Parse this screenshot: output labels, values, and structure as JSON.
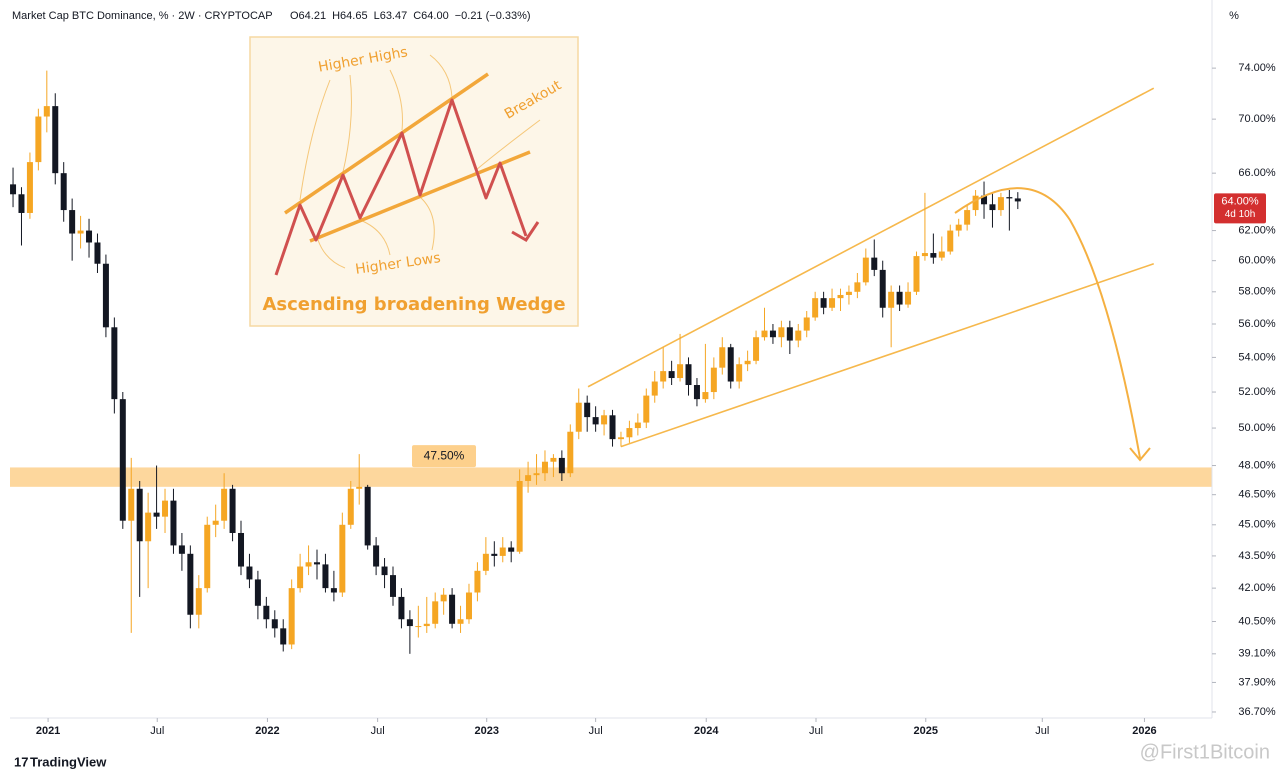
{
  "chart_data": {
    "type": "candlestick",
    "title": "Market Cap BTC Dominance, % · 2W · CRYPTOCAP",
    "header_values": [
      "O64.21",
      "H64.65",
      "L63.47",
      "C64.00",
      "−0.21 (−0.33%)"
    ],
    "axis_unit": "%",
    "last_price_label": "64.00%",
    "countdown": "4d 10h",
    "log_scale": true,
    "grid": false,
    "up_color": "#f5a623",
    "down_color": "#131722",
    "line_color": "#f6b84c",
    "zone_color": "#fdd08c",
    "tag_color": "#d32f2f",
    "ylim": [
      36.46,
      79.7
    ],
    "yticks": [
      {
        "value": 36.7,
        "label": "36.70%"
      },
      {
        "value": 37.9,
        "label": "37.90%"
      },
      {
        "value": 39.1,
        "label": "39.10%"
      },
      {
        "value": 40.5,
        "label": "40.50%"
      },
      {
        "value": 42,
        "label": "42.00%"
      },
      {
        "value": 43.5,
        "label": "43.50%"
      },
      {
        "value": 45,
        "label": "45.00%"
      },
      {
        "value": 46.5,
        "label": "46.50%"
      },
      {
        "value": 48,
        "label": "48.00%"
      },
      {
        "value": 50,
        "label": "50.00%"
      },
      {
        "value": 52,
        "label": "52.00%"
      },
      {
        "value": 54,
        "label": "54.00%"
      },
      {
        "value": 56,
        "label": "56.00%"
      },
      {
        "value": 58,
        "label": "58.00%"
      },
      {
        "value": 60,
        "label": "60.00%"
      },
      {
        "value": 62,
        "label": "62.00%"
      },
      {
        "value": 66,
        "label": "66.00%"
      },
      {
        "value": 70,
        "label": "70.00%"
      },
      {
        "value": 74,
        "label": "74.00%"
      }
    ],
    "xlim": [
      -0.36,
      142
    ],
    "xticks": [
      {
        "value": 4.15,
        "label": "2021"
      },
      {
        "value": 17.08,
        "label": "Jul"
      },
      {
        "value": 30.13,
        "label": "2022"
      },
      {
        "value": 43.18,
        "label": "Jul"
      },
      {
        "value": 56.1,
        "label": "2023"
      },
      {
        "value": 69.0,
        "label": "Jul"
      },
      {
        "value": 82.1,
        "label": "2024"
      },
      {
        "value": 95.1,
        "label": "Jul"
      },
      {
        "value": 108.1,
        "label": "2025"
      },
      {
        "value": 121.9,
        "label": "Jul"
      },
      {
        "value": 134.0,
        "label": "2026"
      }
    ],
    "candles": [
      [
        65.2,
        66.4,
        63.6,
        64.5
      ],
      [
        64.5,
        65.0,
        61.0,
        63.2
      ],
      [
        63.2,
        67.5,
        62.8,
        66.8
      ],
      [
        66.8,
        70.8,
        66.2,
        70.2
      ],
      [
        70.2,
        73.8,
        69.0,
        71.0
      ],
      [
        71.0,
        72.0,
        65.2,
        66.0
      ],
      [
        66.0,
        66.8,
        62.6,
        63.4
      ],
      [
        63.4,
        64.2,
        60.0,
        61.8
      ],
      [
        61.8,
        63.0,
        60.8,
        62.0
      ],
      [
        62.0,
        62.8,
        60.2,
        61.2
      ],
      [
        61.2,
        61.8,
        59.2,
        59.8
      ],
      [
        59.8,
        60.4,
        55.2,
        55.8
      ],
      [
        55.8,
        56.4,
        50.8,
        51.6
      ],
      [
        51.6,
        52.0,
        44.8,
        45.2
      ],
      [
        45.2,
        48.4,
        40.0,
        46.8
      ],
      [
        46.8,
        47.2,
        41.6,
        44.2
      ],
      [
        44.2,
        46.6,
        42.0,
        45.6
      ],
      [
        45.6,
        48.0,
        44.8,
        45.4
      ],
      [
        45.4,
        46.8,
        44.6,
        46.2
      ],
      [
        46.2,
        46.8,
        43.6,
        44.0
      ],
      [
        44.0,
        44.6,
        42.8,
        43.6
      ],
      [
        43.6,
        44.0,
        40.2,
        40.8
      ],
      [
        40.8,
        42.6,
        40.2,
        42.0
      ],
      [
        42.0,
        45.4,
        41.8,
        45.0
      ],
      [
        45.0,
        46.0,
        44.4,
        45.2
      ],
      [
        45.2,
        47.6,
        44.8,
        46.8
      ],
      [
        46.8,
        47.0,
        44.2,
        44.6
      ],
      [
        44.6,
        45.2,
        42.6,
        43.0
      ],
      [
        43.0,
        43.6,
        42.0,
        42.4
      ],
      [
        42.4,
        42.8,
        40.6,
        41.2
      ],
      [
        41.2,
        41.6,
        40.2,
        40.6
      ],
      [
        40.6,
        41.0,
        39.8,
        40.2
      ],
      [
        40.2,
        40.6,
        39.2,
        39.5
      ],
      [
        39.5,
        42.4,
        39.3,
        42.0
      ],
      [
        42.0,
        43.6,
        41.8,
        43.0
      ],
      [
        43.0,
        44.0,
        42.6,
        43.2
      ],
      [
        43.2,
        43.8,
        42.4,
        43.1
      ],
      [
        43.1,
        43.6,
        41.8,
        42.0
      ],
      [
        42.0,
        42.8,
        41.4,
        41.8
      ],
      [
        41.8,
        45.6,
        41.6,
        45.0
      ],
      [
        45.0,
        47.2,
        44.8,
        46.8
      ],
      [
        46.8,
        48.6,
        46.0,
        46.9
      ],
      [
        46.9,
        47.0,
        43.8,
        44.0
      ],
      [
        44.0,
        44.4,
        42.6,
        43.0
      ],
      [
        43.0,
        43.4,
        42.0,
        42.6
      ],
      [
        42.6,
        43.0,
        41.2,
        41.6
      ],
      [
        41.6,
        42.0,
        40.2,
        40.6
      ],
      [
        40.6,
        41.0,
        39.1,
        40.3
      ],
      [
        40.3,
        41.2,
        39.8,
        40.3
      ],
      [
        40.3,
        41.6,
        40.0,
        40.4
      ],
      [
        40.4,
        41.8,
        40.2,
        41.4
      ],
      [
        41.4,
        42.0,
        40.8,
        41.7
      ],
      [
        41.7,
        42.0,
        40.2,
        40.4
      ],
      [
        40.4,
        41.2,
        40.0,
        40.6
      ],
      [
        40.6,
        42.2,
        40.4,
        41.8
      ],
      [
        41.8,
        43.2,
        41.4,
        42.8
      ],
      [
        42.8,
        44.4,
        42.6,
        43.6
      ],
      [
        43.6,
        44.2,
        43.0,
        43.5
      ],
      [
        43.5,
        44.4,
        43.2,
        43.9
      ],
      [
        43.9,
        44.2,
        43.2,
        43.7
      ],
      [
        43.7,
        47.8,
        43.6,
        47.2
      ],
      [
        47.2,
        48.2,
        46.6,
        47.5
      ],
      [
        47.5,
        48.6,
        47.0,
        47.6
      ],
      [
        47.6,
        48.8,
        47.2,
        48.2
      ],
      [
        48.2,
        48.6,
        47.4,
        48.4
      ],
      [
        48.4,
        48.8,
        47.2,
        47.6
      ],
      [
        47.6,
        50.2,
        47.4,
        49.8
      ],
      [
        49.8,
        52.2,
        49.4,
        51.4
      ],
      [
        51.4,
        51.8,
        49.8,
        50.6
      ],
      [
        50.6,
        51.2,
        49.8,
        50.2
      ],
      [
        50.2,
        51.0,
        49.6,
        50.7
      ],
      [
        50.7,
        51.0,
        49.0,
        49.4
      ],
      [
        49.4,
        49.8,
        49.0,
        49.5
      ],
      [
        49.5,
        50.4,
        49.2,
        50.0
      ],
      [
        50.0,
        50.8,
        49.6,
        50.3
      ],
      [
        50.3,
        52.2,
        50.0,
        51.8
      ],
      [
        51.8,
        53.2,
        51.4,
        52.6
      ],
      [
        52.6,
        54.6,
        52.2,
        53.2
      ],
      [
        53.2,
        53.8,
        52.4,
        52.8
      ],
      [
        52.8,
        55.4,
        52.6,
        53.6
      ],
      [
        53.6,
        54.0,
        51.8,
        52.4
      ],
      [
        52.4,
        52.8,
        51.2,
        51.6
      ],
      [
        51.6,
        54.8,
        51.4,
        52.0
      ],
      [
        52.0,
        54.0,
        51.6,
        53.4
      ],
      [
        53.4,
        55.2,
        53.0,
        54.6
      ],
      [
        54.6,
        54.8,
        52.2,
        52.6
      ],
      [
        52.6,
        54.0,
        52.2,
        53.6
      ],
      [
        53.6,
        54.4,
        53.2,
        53.8
      ],
      [
        53.8,
        55.6,
        53.6,
        55.2
      ],
      [
        55.2,
        57.0,
        55.0,
        55.6
      ],
      [
        55.6,
        56.0,
        54.8,
        55.2
      ],
      [
        55.2,
        56.2,
        54.6,
        55.8
      ],
      [
        55.8,
        56.2,
        54.2,
        55.0
      ],
      [
        55.0,
        56.0,
        54.6,
        55.6
      ],
      [
        55.6,
        56.8,
        55.2,
        56.4
      ],
      [
        56.4,
        58.0,
        56.2,
        57.6
      ],
      [
        57.6,
        58.0,
        56.6,
        57.0
      ],
      [
        57.0,
        58.2,
        56.8,
        57.6
      ],
      [
        57.6,
        58.2,
        56.8,
        57.8
      ],
      [
        57.8,
        58.4,
        57.2,
        58.0
      ],
      [
        58.0,
        59.2,
        57.6,
        58.6
      ],
      [
        58.6,
        60.8,
        58.4,
        60.2
      ],
      [
        60.2,
        61.4,
        59.0,
        59.4
      ],
      [
        59.4,
        60.0,
        56.4,
        57.0
      ],
      [
        57.0,
        58.4,
        54.6,
        58.0
      ],
      [
        58.0,
        58.4,
        56.8,
        57.2
      ],
      [
        57.2,
        58.6,
        57.0,
        58.0
      ],
      [
        58.0,
        60.6,
        57.8,
        60.3
      ],
      [
        60.3,
        64.6,
        60.0,
        60.5
      ],
      [
        60.5,
        61.8,
        59.8,
        60.2
      ],
      [
        60.2,
        61.6,
        60.0,
        60.6
      ],
      [
        60.6,
        62.4,
        60.4,
        62.0
      ],
      [
        62.0,
        62.8,
        61.6,
        62.4
      ],
      [
        62.4,
        63.8,
        62.0,
        63.4
      ],
      [
        63.4,
        64.8,
        63.0,
        64.4
      ],
      [
        64.4,
        65.4,
        62.8,
        63.8
      ],
      [
        63.8,
        64.6,
        62.2,
        63.4
      ],
      [
        63.4,
        64.6,
        63.0,
        64.3
      ],
      [
        64.3,
        64.8,
        62.0,
        64.21
      ],
      [
        64.21,
        64.65,
        63.47,
        64.0
      ]
    ],
    "zone": {
      "label": "47.50%",
      "value": 47.5,
      "low": 46.9,
      "high": 47.9
    },
    "trendlines": [
      {
        "x": [
          68.1,
          135.1
        ],
        "y": [
          52.3,
          72.4
        ]
      },
      {
        "x": [
          72.0,
          135.1
        ],
        "y": [
          49.0,
          59.8
        ]
      }
    ],
    "inset": {
      "higher_highs": "Higher Highs",
      "breakout": "Breakout",
      "higher_lows": "Higher Lows",
      "title": "Ascending broadening Wedge"
    },
    "footer": {
      "brand": "TradingView",
      "watermark": "@First1Bitcoin"
    }
  }
}
